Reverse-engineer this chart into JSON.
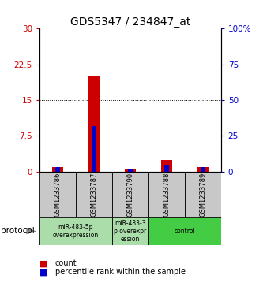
{
  "title": "GDS5347 / 234847_at",
  "samples": [
    "GSM1233786",
    "GSM1233787",
    "GSM1233790",
    "GSM1233788",
    "GSM1233789"
  ],
  "counts": [
    1.0,
    20.0,
    0.5,
    2.5,
    1.0
  ],
  "percentiles": [
    3.0,
    32.0,
    2.0,
    5.0,
    3.0
  ],
  "ylim_left": [
    0,
    30
  ],
  "ylim_right": [
    0,
    100
  ],
  "yticks_left": [
    0,
    7.5,
    15,
    22.5,
    30
  ],
  "yticks_right": [
    0,
    25,
    50,
    75,
    100
  ],
  "ytick_labels_left": [
    "0",
    "7.5",
    "15",
    "22.5",
    "30"
  ],
  "ytick_labels_right": [
    "0",
    "25",
    "50",
    "75",
    "100%"
  ],
  "count_color": "#cc0000",
  "percentile_color": "#0000cc",
  "protocol_groups": [
    {
      "label": "miR-483-5p\noverexpression",
      "indices": [
        0,
        1
      ],
      "color": "#aaddaa"
    },
    {
      "label": "miR-483-3\np overexpr\nession",
      "indices": [
        2
      ],
      "color": "#aaddaa"
    },
    {
      "label": "control",
      "indices": [
        3,
        4
      ],
      "color": "#44cc44"
    }
  ],
  "protocol_label": "protocol",
  "sample_box_color": "#c8c8c8",
  "title_fontsize": 10,
  "tick_fontsize": 7.5,
  "bar_width": 0.3,
  "blue_bar_width": 0.12
}
